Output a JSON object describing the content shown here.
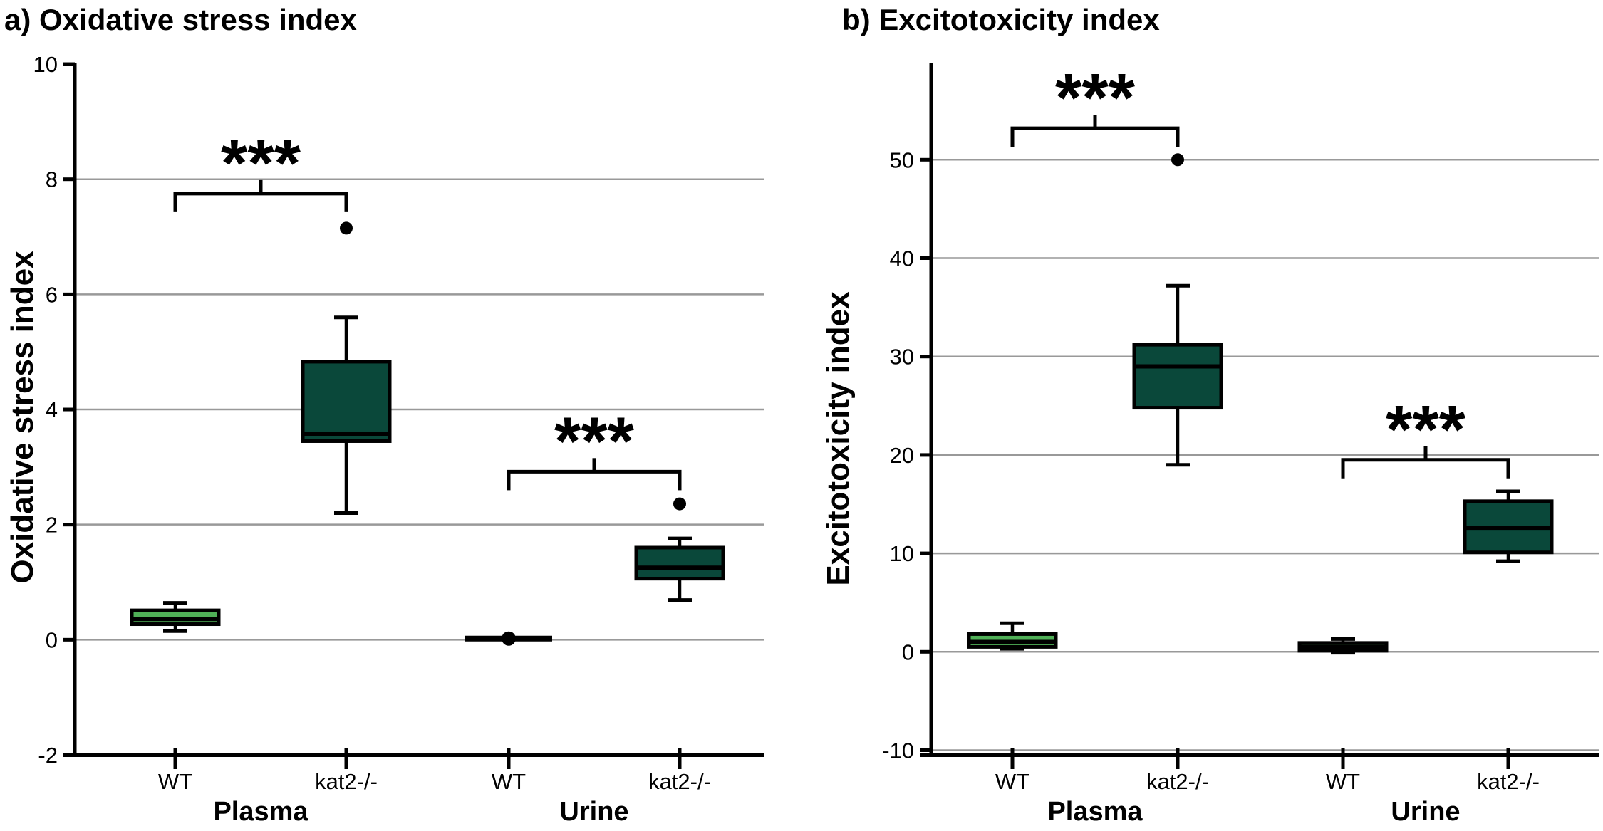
{
  "figure": {
    "background": "#ffffff",
    "axis_color": "#000000",
    "grid_color": "#999999"
  },
  "chart_data": {
    "type": "box",
    "panels": [
      {
        "panel_label": "a",
        "title": "a) Oxidative stress index",
        "ylabel": "Oxidative stress index",
        "ylim": [
          -2,
          10
        ],
        "yticks": [
          10,
          8,
          6,
          4,
          2,
          0,
          -2
        ],
        "gridlines": [
          8,
          6,
          4,
          2,
          0
        ],
        "groups": [
          {
            "label": "Plasma"
          },
          {
            "label": "Urine"
          }
        ],
        "boxes": [
          {
            "category": "WT",
            "group": "Plasma",
            "fill": "#50b057",
            "flat": false,
            "whislo": 0.15,
            "q1": 0.27,
            "med": 0.36,
            "q3": 0.51,
            "whishi": 0.64,
            "outliers": []
          },
          {
            "category": "kat2-/-",
            "group": "Plasma",
            "fill": "#0a483a",
            "flat": false,
            "whislo": 2.2,
            "q1": 3.45,
            "med": 3.58,
            "q3": 4.83,
            "whishi": 5.6,
            "outliers": [
              7.15
            ]
          },
          {
            "category": "WT",
            "group": "Urine",
            "fill": "#000000",
            "flat": true,
            "whislo": 0.02,
            "q1": 0.02,
            "med": 0.02,
            "q3": 0.02,
            "whishi": 0.02,
            "outliers": [],
            "marker": 0.02
          },
          {
            "category": "kat2-/-",
            "group": "Urine",
            "fill": "#0a483a",
            "flat": false,
            "whislo": 0.69,
            "q1": 1.06,
            "med": 1.25,
            "q3": 1.6,
            "whishi": 1.76,
            "outliers": [
              2.36
            ]
          }
        ],
        "significance": [
          {
            "between": [
              "Plasma WT",
              "Plasma kat2-/-"
            ],
            "from": 0,
            "to": 1,
            "bar_value": 7.75,
            "label": "***"
          },
          {
            "between": [
              "Urine WT",
              "Urine kat2-/-"
            ],
            "from": 2,
            "to": 3,
            "bar_value": 2.92,
            "label": "***"
          }
        ]
      },
      {
        "panel_label": "b",
        "title": "b) Excitotoxicity index",
        "ylabel": "Excitotoxicity index",
        "ylim": [
          -10,
          60
        ],
        "yticks": [
          50,
          40,
          30,
          20,
          10,
          0,
          -10
        ],
        "gridlines": [
          50,
          40,
          30,
          20,
          10,
          0,
          -10
        ],
        "groups": [
          {
            "label": "Plasma"
          },
          {
            "label": "Urine"
          }
        ],
        "boxes": [
          {
            "category": "WT",
            "group": "Plasma",
            "fill": "#50b057",
            "flat": false,
            "whislo": 0.3,
            "q1": 0.5,
            "med": 1.0,
            "q3": 1.8,
            "whishi": 2.9,
            "outliers": []
          },
          {
            "category": "kat2-/-",
            "group": "Plasma",
            "fill": "#0a483a",
            "flat": false,
            "whislo": 19.0,
            "q1": 24.8,
            "med": 29.0,
            "q3": 31.2,
            "whishi": 37.2,
            "outliers": [
              50
            ]
          },
          {
            "category": "WT",
            "group": "Urine",
            "fill": "#50b057",
            "flat": false,
            "whislo": -0.1,
            "q1": 0.1,
            "med": 0.5,
            "q3": 0.9,
            "whishi": 1.3,
            "outliers": []
          },
          {
            "category": "kat2-/-",
            "group": "Urine",
            "fill": "#0a483a",
            "flat": false,
            "whislo": 9.2,
            "q1": 10.1,
            "med": 12.6,
            "q3": 15.3,
            "whishi": 16.3,
            "outliers": []
          }
        ],
        "significance": [
          {
            "between": [
              "Plasma WT",
              "Plasma kat2-/-"
            ],
            "from": 0,
            "to": 1,
            "bar_value": 53.2,
            "label": "***"
          },
          {
            "between": [
              "Urine WT",
              "Urine kat2-/-"
            ],
            "from": 2,
            "to": 3,
            "bar_value": 19.5,
            "label": "***"
          }
        ]
      }
    ]
  }
}
